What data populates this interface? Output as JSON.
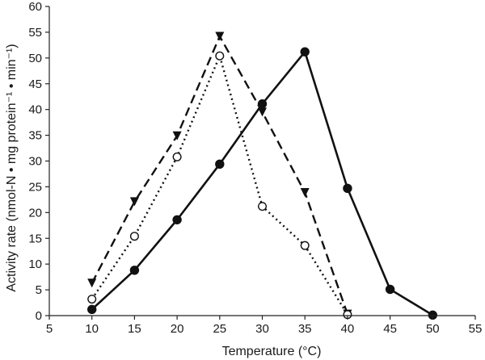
{
  "chart_data": {
    "type": "line",
    "title": "",
    "xlabel": "Temperature (°C)",
    "ylabel": "Activity rate (nmol-N • mg protein⁻¹ • min⁻¹)",
    "xlim": [
      5,
      55
    ],
    "ylim": [
      0,
      60
    ],
    "xticks": [
      5,
      10,
      15,
      20,
      25,
      30,
      35,
      40,
      45,
      50,
      55
    ],
    "yticks": [
      0,
      5,
      10,
      15,
      20,
      25,
      30,
      35,
      40,
      45,
      50,
      55,
      60
    ],
    "grid": false,
    "legend": "none",
    "series": [
      {
        "style": "solid",
        "marker": "filled-circle",
        "color": "#111111",
        "x": [
          10,
          15,
          20,
          25,
          30,
          35,
          40,
          45,
          50
        ],
        "y": [
          1.2,
          8.8,
          18.6,
          29.4,
          41.1,
          51.2,
          24.7,
          5.1,
          0.1
        ]
      },
      {
        "style": "dashed",
        "marker": "filled-triangle-down",
        "color": "#111111",
        "x": [
          10,
          15,
          20,
          25,
          30,
          35,
          40
        ],
        "y": [
          6.3,
          22.1,
          34.9,
          54.2,
          39.5,
          23.9,
          0.3
        ]
      },
      {
        "style": "dotted",
        "marker": "open-circle",
        "color": "#111111",
        "x": [
          10,
          15,
          20,
          25,
          30,
          35,
          40
        ],
        "y": [
          3.2,
          15.4,
          30.8,
          50.4,
          21.2,
          13.6,
          0.2
        ]
      }
    ]
  }
}
